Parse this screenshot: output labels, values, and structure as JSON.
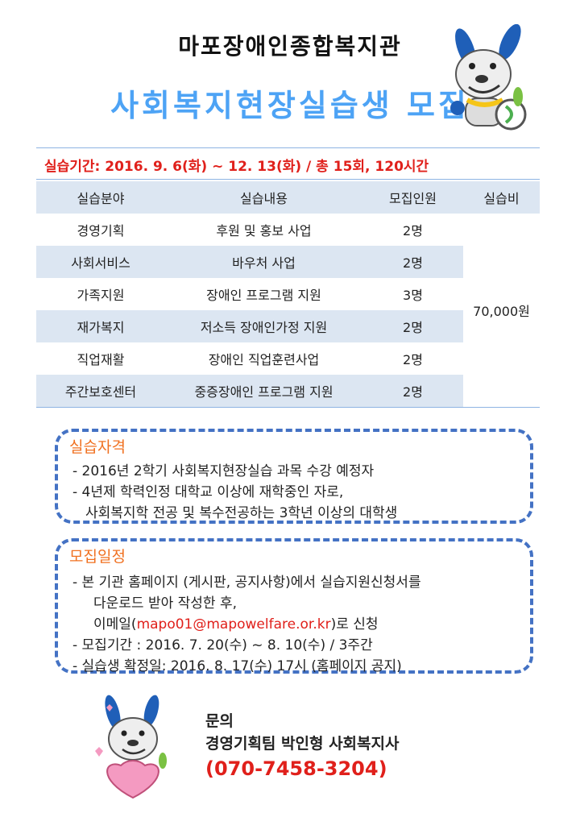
{
  "header": {
    "organization": "마포장애인종합복지관",
    "title": "사회복지현장실습생 모집"
  },
  "period": "실습기간: 2016. 9. 6(화) ~ 12. 13(화) / 총 15회, 120시간",
  "table": {
    "headers": [
      "실습분야",
      "실습내용",
      "모집인원",
      "실습비"
    ],
    "rows": [
      {
        "field": "경영기획",
        "content": "후원 및 홍보 사업",
        "count": "2명"
      },
      {
        "field": "사회서비스",
        "content": "바우처 사업",
        "count": "2명"
      },
      {
        "field": "가족지원",
        "content": "장애인 프로그램 지원",
        "count": "3명"
      },
      {
        "field": "재가복지",
        "content": "저소득 장애인가정 지원",
        "count": "2명"
      },
      {
        "field": "직업재활",
        "content": "장애인 직업훈련사업",
        "count": "2명"
      },
      {
        "field": "주간보호센터",
        "content": "중증장애인 프로그램 지원",
        "count": "2명"
      }
    ],
    "fee": "70,000원"
  },
  "qualification": {
    "heading": "실습자격",
    "lines": [
      "- 2016년  2학기 사회복지현장실습 과목 수강 예정자",
      "- 4년제 학력인정 대학교 이상에 재학중인 자로,",
      "사회복지학 전공 및 복수전공하는 3학년 이상의 대학생"
    ]
  },
  "schedule": {
    "heading": "모집일정",
    "line1": "-   본 기관 홈페이지 (게시판, 공지사항)에서 실습지원신청서를",
    "line2": "다운로드 받아 작성한 후,",
    "email_prefix": "이메일(",
    "email": "mapo01@mapowelfare.or.kr",
    "email_suffix": ")로  신청",
    "line4": "-   모집기간 : 2016. 7. 20(수)  ~ 8. 10(수)  / 3주간",
    "line5": "-   실습생 확정일: 2016. 8. 17(수)  17시 (홈페이지 공지)"
  },
  "contact": {
    "label": "문의",
    "person": "경영기획팀 박인형 사회복지사",
    "phone": "(070-7458-3204)"
  },
  "colors": {
    "accent_blue": "#4da3f5",
    "red": "#e0201b",
    "orange": "#f07020",
    "dash_blue": "#4472c4",
    "cell_blue": "#dce6f2"
  }
}
